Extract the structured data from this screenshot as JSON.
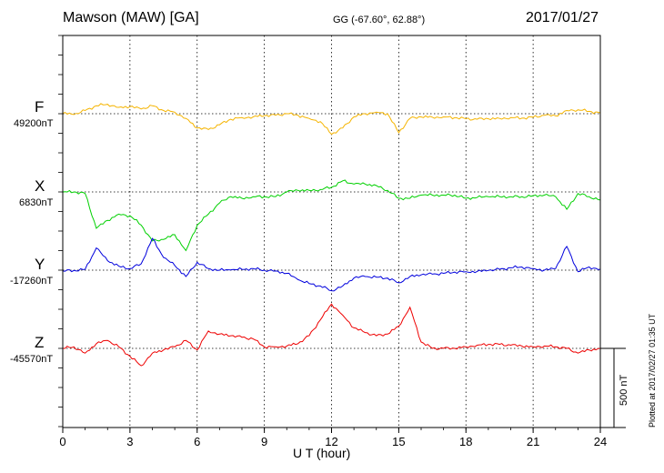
{
  "header": {
    "station": "Mawson (MAW)  [GA]",
    "coordinates": "GG (-67.60°,  62.88°)",
    "date": "2017/01/27"
  },
  "footer": {
    "plotted": "Plotted at 2017/02/27 01:35 UT"
  },
  "chart_data": {
    "type": "line",
    "title": "",
    "xlabel": "U T (hour)",
    "ylabel": "",
    "xlim": [
      0,
      24
    ],
    "x_ticks": [
      "0",
      "3",
      "6",
      "9",
      "12",
      "15",
      "18",
      "21",
      "24"
    ],
    "grid": true,
    "scale_bar": {
      "label": "500 nT",
      "value_nT": 500
    },
    "x": [
      0,
      0.5,
      1,
      1.5,
      2,
      2.5,
      3,
      3.5,
      4,
      4.5,
      5,
      5.5,
      6,
      6.5,
      7,
      7.5,
      8,
      8.5,
      9,
      9.5,
      10,
      10.5,
      11,
      11.5,
      12,
      12.5,
      13,
      13.5,
      14,
      14.5,
      15,
      15.5,
      16,
      16.5,
      17,
      17.5,
      18,
      18.5,
      19,
      19.5,
      20,
      20.5,
      21,
      21.5,
      22,
      22.5,
      23,
      23.5,
      24
    ],
    "series": [
      {
        "name": "F",
        "baseline": "49200nT",
        "color": "#f5b400",
        "values": [
          49202,
          49195,
          49220,
          49250,
          49260,
          49240,
          49245,
          49230,
          49250,
          49220,
          49210,
          49170,
          49110,
          49100,
          49130,
          49165,
          49175,
          49180,
          49188,
          49190,
          49200,
          49190,
          49170,
          49150,
          49070,
          49110,
          49180,
          49200,
          49210,
          49200,
          49080,
          49170,
          49180,
          49178,
          49180,
          49175,
          49168,
          49165,
          49168,
          49170,
          49175,
          49172,
          49178,
          49190,
          49186,
          49220,
          49225,
          49215,
          49205
        ]
      },
      {
        "name": "X",
        "baseline": "6830nT",
        "color": "#00d000",
        "values": [
          6830,
          6830,
          6820,
          6600,
          6650,
          6690,
          6680,
          6620,
          6520,
          6530,
          6560,
          6460,
          6620,
          6690,
          6760,
          6800,
          6790,
          6800,
          6800,
          6800,
          6830,
          6840,
          6840,
          6845,
          6860,
          6900,
          6880,
          6880,
          6870,
          6840,
          6790,
          6790,
          6810,
          6810,
          6810,
          6810,
          6790,
          6795,
          6800,
          6800,
          6800,
          6800,
          6805,
          6810,
          6800,
          6720,
          6820,
          6800,
          6780
        ]
      },
      {
        "name": "Y",
        "baseline": "-17260nT",
        "color": "#0000dd",
        "values": [
          -17265,
          -17262,
          -17255,
          -17120,
          -17200,
          -17235,
          -17250,
          -17220,
          -17060,
          -17180,
          -17230,
          -17300,
          -17210,
          -17250,
          -17260,
          -17258,
          -17255,
          -17250,
          -17260,
          -17265,
          -17280,
          -17320,
          -17345,
          -17360,
          -17390,
          -17360,
          -17310,
          -17300,
          -17305,
          -17310,
          -17340,
          -17300,
          -17290,
          -17285,
          -17280,
          -17272,
          -17270,
          -17268,
          -17262,
          -17255,
          -17245,
          -17240,
          -17250,
          -17260,
          -17250,
          -17110,
          -17270,
          -17240,
          -17255
        ]
      },
      {
        "name": "Z",
        "baseline": "-45570nT",
        "color": "#ee0000",
        "values": [
          -45570,
          -45560,
          -45600,
          -45540,
          -45520,
          -45560,
          -45620,
          -45680,
          -45600,
          -45580,
          -45560,
          -45520,
          -45580,
          -45460,
          -45480,
          -45490,
          -45500,
          -45510,
          -45560,
          -45560,
          -45555,
          -45540,
          -45490,
          -45390,
          -45290,
          -45360,
          -45440,
          -45470,
          -45490,
          -45480,
          -45430,
          -45310,
          -45530,
          -45570,
          -45570,
          -45570,
          -45560,
          -45550,
          -45545,
          -45545,
          -45550,
          -45555,
          -45560,
          -45555,
          -45560,
          -45570,
          -45600,
          -45580,
          -45570
        ]
      }
    ]
  }
}
